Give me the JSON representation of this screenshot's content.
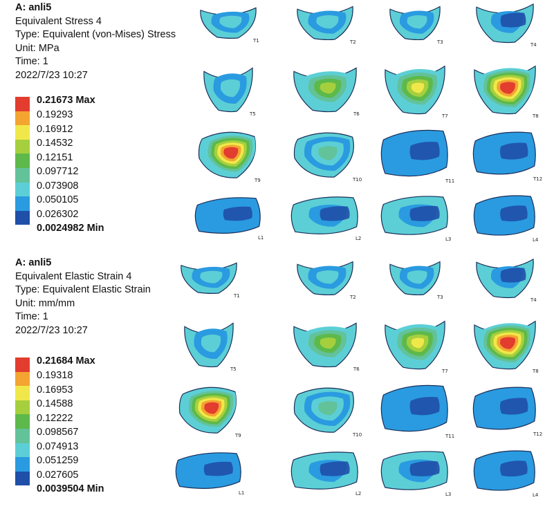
{
  "colors": {
    "scale": [
      "#1f4fa8",
      "#2a9be0",
      "#5ccfd6",
      "#62c29a",
      "#5db94a",
      "#a6cf3e",
      "#f0e84a",
      "#f4a431",
      "#e23d2f"
    ],
    "dark_blue": "#1f4fa8",
    "edge": "#1a2d58"
  },
  "panels": [
    {
      "id": "stress",
      "title": "A: anli5",
      "result": "Equivalent Stress 4",
      "type_line": "Type: Equivalent (von-Mises) Stress",
      "unit_line": "Unit: MPa",
      "time_line": "Time: 1",
      "timestamp": "2022/7/23 10:27",
      "legend": [
        "0.21673 Max",
        "0.19293",
        "0.16912",
        "0.14532",
        "0.12151",
        "0.097712",
        "0.073908",
        "0.050105",
        "0.026302",
        "0.0024982 Min"
      ],
      "vertebrae": [
        {
          "label": "T1",
          "level": 3
        },
        {
          "label": "T2",
          "level": 3
        },
        {
          "label": "T3",
          "level": 3
        },
        {
          "label": "T4",
          "level": 2
        },
        {
          "label": "T5",
          "level": 3
        },
        {
          "label": "T6",
          "level": 5
        },
        {
          "label": "T7",
          "level": 6
        },
        {
          "label": "T8",
          "level": 9
        },
        {
          "label": "T9",
          "level": 9
        },
        {
          "label": "T10",
          "level": 4
        },
        {
          "label": "T11",
          "level": 1
        },
        {
          "label": "T12",
          "level": 1
        },
        {
          "label": "L1",
          "level": 1
        },
        {
          "label": "L2",
          "level": 2
        },
        {
          "label": "L3",
          "level": 2
        },
        {
          "label": "L4",
          "level": 1
        }
      ]
    },
    {
      "id": "strain",
      "title": "A: anli5",
      "result": "Equivalent Elastic Strain 4",
      "type_line": "Type: Equivalent Elastic Strain",
      "unit_line": "Unit: mm/mm",
      "time_line": "Time: 1",
      "timestamp": "2022/7/23 10:27",
      "legend": [
        "0.21684 Max",
        "0.19318",
        "0.16953",
        "0.14588",
        "0.12222",
        "0.098567",
        "0.074913",
        "0.051259",
        "0.027605",
        "0.0039504 Min"
      ],
      "vertebrae": [
        {
          "label": "T1",
          "level": 3
        },
        {
          "label": "T2",
          "level": 3
        },
        {
          "label": "T3",
          "level": 3
        },
        {
          "label": "T4",
          "level": 2
        },
        {
          "label": "T5",
          "level": 3
        },
        {
          "label": "T6",
          "level": 5
        },
        {
          "label": "T7",
          "level": 6
        },
        {
          "label": "T8",
          "level": 9
        },
        {
          "label": "T9",
          "level": 9
        },
        {
          "label": "T10",
          "level": 4
        },
        {
          "label": "T11",
          "level": 1
        },
        {
          "label": "T12",
          "level": 1
        },
        {
          "label": "L1",
          "level": 1
        },
        {
          "label": "L2",
          "level": 2
        },
        {
          "label": "L3",
          "level": 2
        },
        {
          "label": "L4",
          "level": 1
        }
      ]
    }
  ]
}
